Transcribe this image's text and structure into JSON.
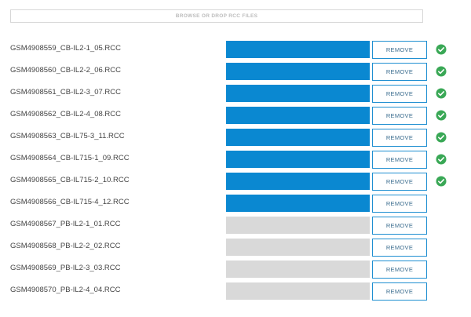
{
  "upload": {
    "drop_label": "BROWSE OR DROP RCC FILES"
  },
  "colors": {
    "progress_fill": "#0a88d1",
    "progress_track": "#d9d9d9",
    "success_check": "#3aa856",
    "button_border": "#1f8fd1"
  },
  "files": [
    {
      "name": "GSM4908559_CB-IL2-1_05.RCC",
      "progress": 1.0,
      "remove_label": "REMOVE",
      "status": "complete",
      "status_icon": "check-circle-icon"
    },
    {
      "name": "GSM4908560_CB-IL2-2_06.RCC",
      "progress": 1.0,
      "remove_label": "REMOVE",
      "status": "complete",
      "status_icon": "check-circle-icon"
    },
    {
      "name": "GSM4908561_CB-IL2-3_07.RCC",
      "progress": 1.0,
      "remove_label": "REMOVE",
      "status": "complete",
      "status_icon": "check-circle-icon"
    },
    {
      "name": "GSM4908562_CB-IL2-4_08.RCC",
      "progress": 1.0,
      "remove_label": "REMOVE",
      "status": "complete",
      "status_icon": "check-circle-icon"
    },
    {
      "name": "GSM4908563_CB-IL75-3_11.RCC",
      "progress": 1.0,
      "remove_label": "REMOVE",
      "status": "complete",
      "status_icon": "check-circle-icon"
    },
    {
      "name": "GSM4908564_CB-IL715-1_09.RCC",
      "progress": 1.0,
      "remove_label": "REMOVE",
      "status": "complete",
      "status_icon": "check-circle-icon"
    },
    {
      "name": "GSM4908565_CB-IL715-2_10.RCC",
      "progress": 1.0,
      "remove_label": "REMOVE",
      "status": "complete",
      "status_icon": "check-circle-icon"
    },
    {
      "name": "GSM4908566_CB-IL715-4_12.RCC",
      "progress": 1.0,
      "remove_label": "REMOVE",
      "status": "uploaded",
      "status_icon": ""
    },
    {
      "name": "GSM4908567_PB-IL2-1_01.RCC",
      "progress": 0.0,
      "remove_label": "REMOVE",
      "status": "pending",
      "status_icon": ""
    },
    {
      "name": "GSM4908568_PB-IL2-2_02.RCC",
      "progress": 0.0,
      "remove_label": "REMOVE",
      "status": "pending",
      "status_icon": ""
    },
    {
      "name": "GSM4908569_PB-IL2-3_03.RCC",
      "progress": 0.0,
      "remove_label": "REMOVE",
      "status": "pending",
      "status_icon": ""
    },
    {
      "name": "GSM4908570_PB-IL2-4_04.RCC",
      "progress": 0.0,
      "remove_label": "REMOVE",
      "status": "pending",
      "status_icon": ""
    }
  ]
}
